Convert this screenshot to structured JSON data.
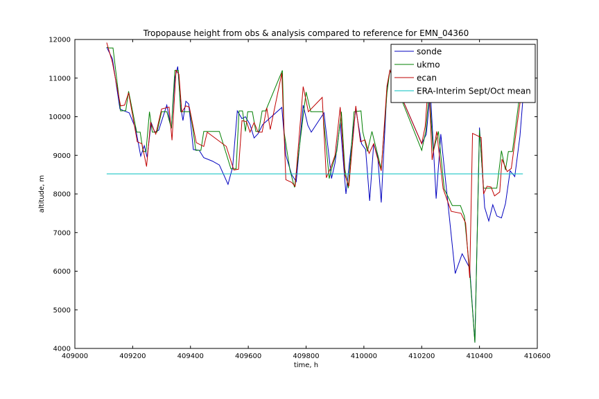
{
  "chart_data": {
    "type": "line",
    "title": "Tropopause height from obs & analysis compared to reference for EMN_04360",
    "xlabel": "time, h",
    "ylabel": "altitude, m",
    "xlim": [
      409000,
      410600
    ],
    "ylim": [
      4000,
      12000
    ],
    "xticks": [
      409000,
      409200,
      409400,
      409600,
      409800,
      410000,
      410200,
      410400,
      410600
    ],
    "yticks": [
      4000,
      5000,
      6000,
      7000,
      8000,
      9000,
      10000,
      11000,
      12000
    ],
    "grid": false,
    "legend_position": "top-right",
    "series": [
      {
        "name": "sonde",
        "color": "#0000bf",
        "points": [
          [
            409110,
            11800
          ],
          [
            409130,
            11500
          ],
          [
            409156,
            10200
          ],
          [
            409170,
            10150
          ],
          [
            409188,
            10100
          ],
          [
            409210,
            9700
          ],
          [
            409228,
            8980
          ],
          [
            409240,
            9250
          ],
          [
            409250,
            8950
          ],
          [
            409264,
            9850
          ],
          [
            409276,
            9600
          ],
          [
            409290,
            9650
          ],
          [
            409318,
            10300
          ],
          [
            409334,
            9700
          ],
          [
            409346,
            11000
          ],
          [
            409356,
            11300
          ],
          [
            409366,
            10250
          ],
          [
            409374,
            9900
          ],
          [
            409384,
            10400
          ],
          [
            409394,
            10330
          ],
          [
            409410,
            9150
          ],
          [
            409430,
            9130
          ],
          [
            409446,
            8940
          ],
          [
            409476,
            8850
          ],
          [
            409500,
            8750
          ],
          [
            409530,
            8250
          ],
          [
            409546,
            8700
          ],
          [
            409562,
            10150
          ],
          [
            409578,
            9950
          ],
          [
            409590,
            10000
          ],
          [
            409606,
            9800
          ],
          [
            409620,
            9450
          ],
          [
            409634,
            9560
          ],
          [
            409650,
            9800
          ],
          [
            409716,
            10240
          ],
          [
            409730,
            9000
          ],
          [
            409750,
            8500
          ],
          [
            409766,
            8320
          ],
          [
            409790,
            10300
          ],
          [
            409806,
            9780
          ],
          [
            409818,
            9600
          ],
          [
            409862,
            10100
          ],
          [
            409888,
            8400
          ],
          [
            409900,
            8800
          ],
          [
            409918,
            9850
          ],
          [
            409938,
            8000
          ],
          [
            409954,
            9080
          ],
          [
            409972,
            10200
          ],
          [
            409992,
            9300
          ],
          [
            410006,
            9150
          ],
          [
            410020,
            7820
          ],
          [
            410034,
            9300
          ],
          [
            410048,
            8950
          ],
          [
            410060,
            7780
          ],
          [
            410080,
            10750
          ],
          [
            410090,
            11200
          ],
          [
            410200,
            9300
          ],
          [
            410216,
            9550
          ],
          [
            410230,
            10650
          ],
          [
            410250,
            7880
          ],
          [
            410266,
            9550
          ],
          [
            410286,
            8100
          ],
          [
            410316,
            5940
          ],
          [
            410340,
            6450
          ],
          [
            410366,
            6080
          ],
          [
            410384,
            4150
          ],
          [
            410400,
            9720
          ],
          [
            410418,
            7650
          ],
          [
            410432,
            7300
          ],
          [
            410446,
            7720
          ],
          [
            410460,
            7430
          ],
          [
            410476,
            7380
          ],
          [
            410490,
            7750
          ],
          [
            410506,
            8600
          ],
          [
            410522,
            8450
          ],
          [
            410540,
            9500
          ],
          [
            410550,
            10450
          ]
        ]
      },
      {
        "name": "ukmo",
        "color": "#007f00",
        "points": [
          [
            409110,
            11800
          ],
          [
            409120,
            11780
          ],
          [
            409132,
            11780
          ],
          [
            409158,
            10150
          ],
          [
            409176,
            10160
          ],
          [
            409186,
            10660
          ],
          [
            409214,
            9600
          ],
          [
            409226,
            9600
          ],
          [
            409236,
            9100
          ],
          [
            409246,
            9100
          ],
          [
            409258,
            10130
          ],
          [
            409268,
            9600
          ],
          [
            409284,
            9600
          ],
          [
            409300,
            10130
          ],
          [
            409318,
            10130
          ],
          [
            409334,
            9700
          ],
          [
            409346,
            11200
          ],
          [
            409358,
            11200
          ],
          [
            409366,
            10130
          ],
          [
            409378,
            10130
          ],
          [
            409398,
            10130
          ],
          [
            409408,
            9700
          ],
          [
            409418,
            9130
          ],
          [
            409436,
            9130
          ],
          [
            409446,
            9620
          ],
          [
            409500,
            9620
          ],
          [
            409540,
            8650
          ],
          [
            409558,
            8650
          ],
          [
            409568,
            10150
          ],
          [
            409580,
            10150
          ],
          [
            409590,
            9620
          ],
          [
            409598,
            10130
          ],
          [
            409614,
            10130
          ],
          [
            409626,
            9620
          ],
          [
            409636,
            9620
          ],
          [
            409648,
            10150
          ],
          [
            409660,
            10150
          ],
          [
            409718,
            11200
          ],
          [
            409724,
            9600
          ],
          [
            409744,
            8620
          ],
          [
            409760,
            8170
          ],
          [
            409800,
            10640
          ],
          [
            409816,
            10130
          ],
          [
            409858,
            10130
          ],
          [
            409880,
            8400
          ],
          [
            409888,
            8650
          ],
          [
            409906,
            9100
          ],
          [
            409922,
            10130
          ],
          [
            409934,
            8650
          ],
          [
            409946,
            8150
          ],
          [
            409966,
            10130
          ],
          [
            409990,
            10150
          ],
          [
            409996,
            9620
          ],
          [
            410012,
            9100
          ],
          [
            410028,
            9620
          ],
          [
            410060,
            8650
          ],
          [
            410080,
            10620
          ],
          [
            410090,
            11200
          ],
          [
            410200,
            9130
          ],
          [
            410214,
            9620
          ],
          [
            410226,
            10640
          ],
          [
            410240,
            9100
          ],
          [
            410258,
            9620
          ],
          [
            410278,
            8130
          ],
          [
            410306,
            7700
          ],
          [
            410334,
            7700
          ],
          [
            410348,
            7420
          ],
          [
            410366,
            6000
          ],
          [
            410384,
            4150
          ],
          [
            410400,
            9660
          ],
          [
            410414,
            8150
          ],
          [
            410432,
            8150
          ],
          [
            410460,
            8150
          ],
          [
            410476,
            9120
          ],
          [
            410490,
            8620
          ],
          [
            410500,
            9100
          ],
          [
            410514,
            9100
          ],
          [
            410540,
            10620
          ],
          [
            410550,
            10660
          ]
        ]
      },
      {
        "name": "ecan",
        "color": "#bf0000",
        "points": [
          [
            409110,
            11920
          ],
          [
            409130,
            11400
          ],
          [
            409158,
            10280
          ],
          [
            409172,
            10300
          ],
          [
            409186,
            10620
          ],
          [
            409216,
            9350
          ],
          [
            409232,
            9300
          ],
          [
            409248,
            8710
          ],
          [
            409262,
            9850
          ],
          [
            409280,
            9550
          ],
          [
            409300,
            10200
          ],
          [
            409326,
            10250
          ],
          [
            409336,
            9390
          ],
          [
            409350,
            11200
          ],
          [
            409360,
            11100
          ],
          [
            409370,
            10120
          ],
          [
            409384,
            10280
          ],
          [
            409396,
            10250
          ],
          [
            409420,
            9330
          ],
          [
            409446,
            9230
          ],
          [
            409458,
            9600
          ],
          [
            409524,
            9230
          ],
          [
            409550,
            8620
          ],
          [
            409566,
            8640
          ],
          [
            409578,
            9900
          ],
          [
            409594,
            9870
          ],
          [
            409606,
            9600
          ],
          [
            409620,
            9850
          ],
          [
            409634,
            9600
          ],
          [
            409648,
            9600
          ],
          [
            409664,
            10230
          ],
          [
            409676,
            9670
          ],
          [
            409716,
            11130
          ],
          [
            409730,
            8370
          ],
          [
            409750,
            8300
          ],
          [
            409762,
            8200
          ],
          [
            409790,
            10780
          ],
          [
            409808,
            10130
          ],
          [
            409856,
            10500
          ],
          [
            409870,
            8420
          ],
          [
            409886,
            8700
          ],
          [
            409900,
            9000
          ],
          [
            409918,
            10250
          ],
          [
            409934,
            8500
          ],
          [
            409948,
            8200
          ],
          [
            409972,
            10280
          ],
          [
            409988,
            9350
          ],
          [
            410004,
            9400
          ],
          [
            410018,
            9050
          ],
          [
            410034,
            9300
          ],
          [
            410046,
            8960
          ],
          [
            410060,
            8600
          ],
          [
            410080,
            10800
          ],
          [
            410090,
            11200
          ],
          [
            410200,
            9300
          ],
          [
            410212,
            9750
          ],
          [
            410224,
            11000
          ],
          [
            410236,
            8880
          ],
          [
            410252,
            9620
          ],
          [
            410274,
            8140
          ],
          [
            410302,
            7550
          ],
          [
            410336,
            7500
          ],
          [
            410352,
            7250
          ],
          [
            410366,
            5830
          ],
          [
            410376,
            9570
          ],
          [
            410406,
            9460
          ],
          [
            410414,
            8000
          ],
          [
            410426,
            8200
          ],
          [
            410440,
            8180
          ],
          [
            410452,
            7950
          ],
          [
            410470,
            8050
          ],
          [
            410478,
            8900
          ],
          [
            410496,
            8580
          ],
          [
            410510,
            8660
          ],
          [
            410540,
            10350
          ],
          [
            410552,
            10750
          ]
        ]
      },
      {
        "name": "ERA-Interim Sept/Oct mean",
        "color": "#00bfbf",
        "points": [
          [
            409110,
            8520
          ],
          [
            410550,
            8520
          ]
        ]
      }
    ]
  }
}
